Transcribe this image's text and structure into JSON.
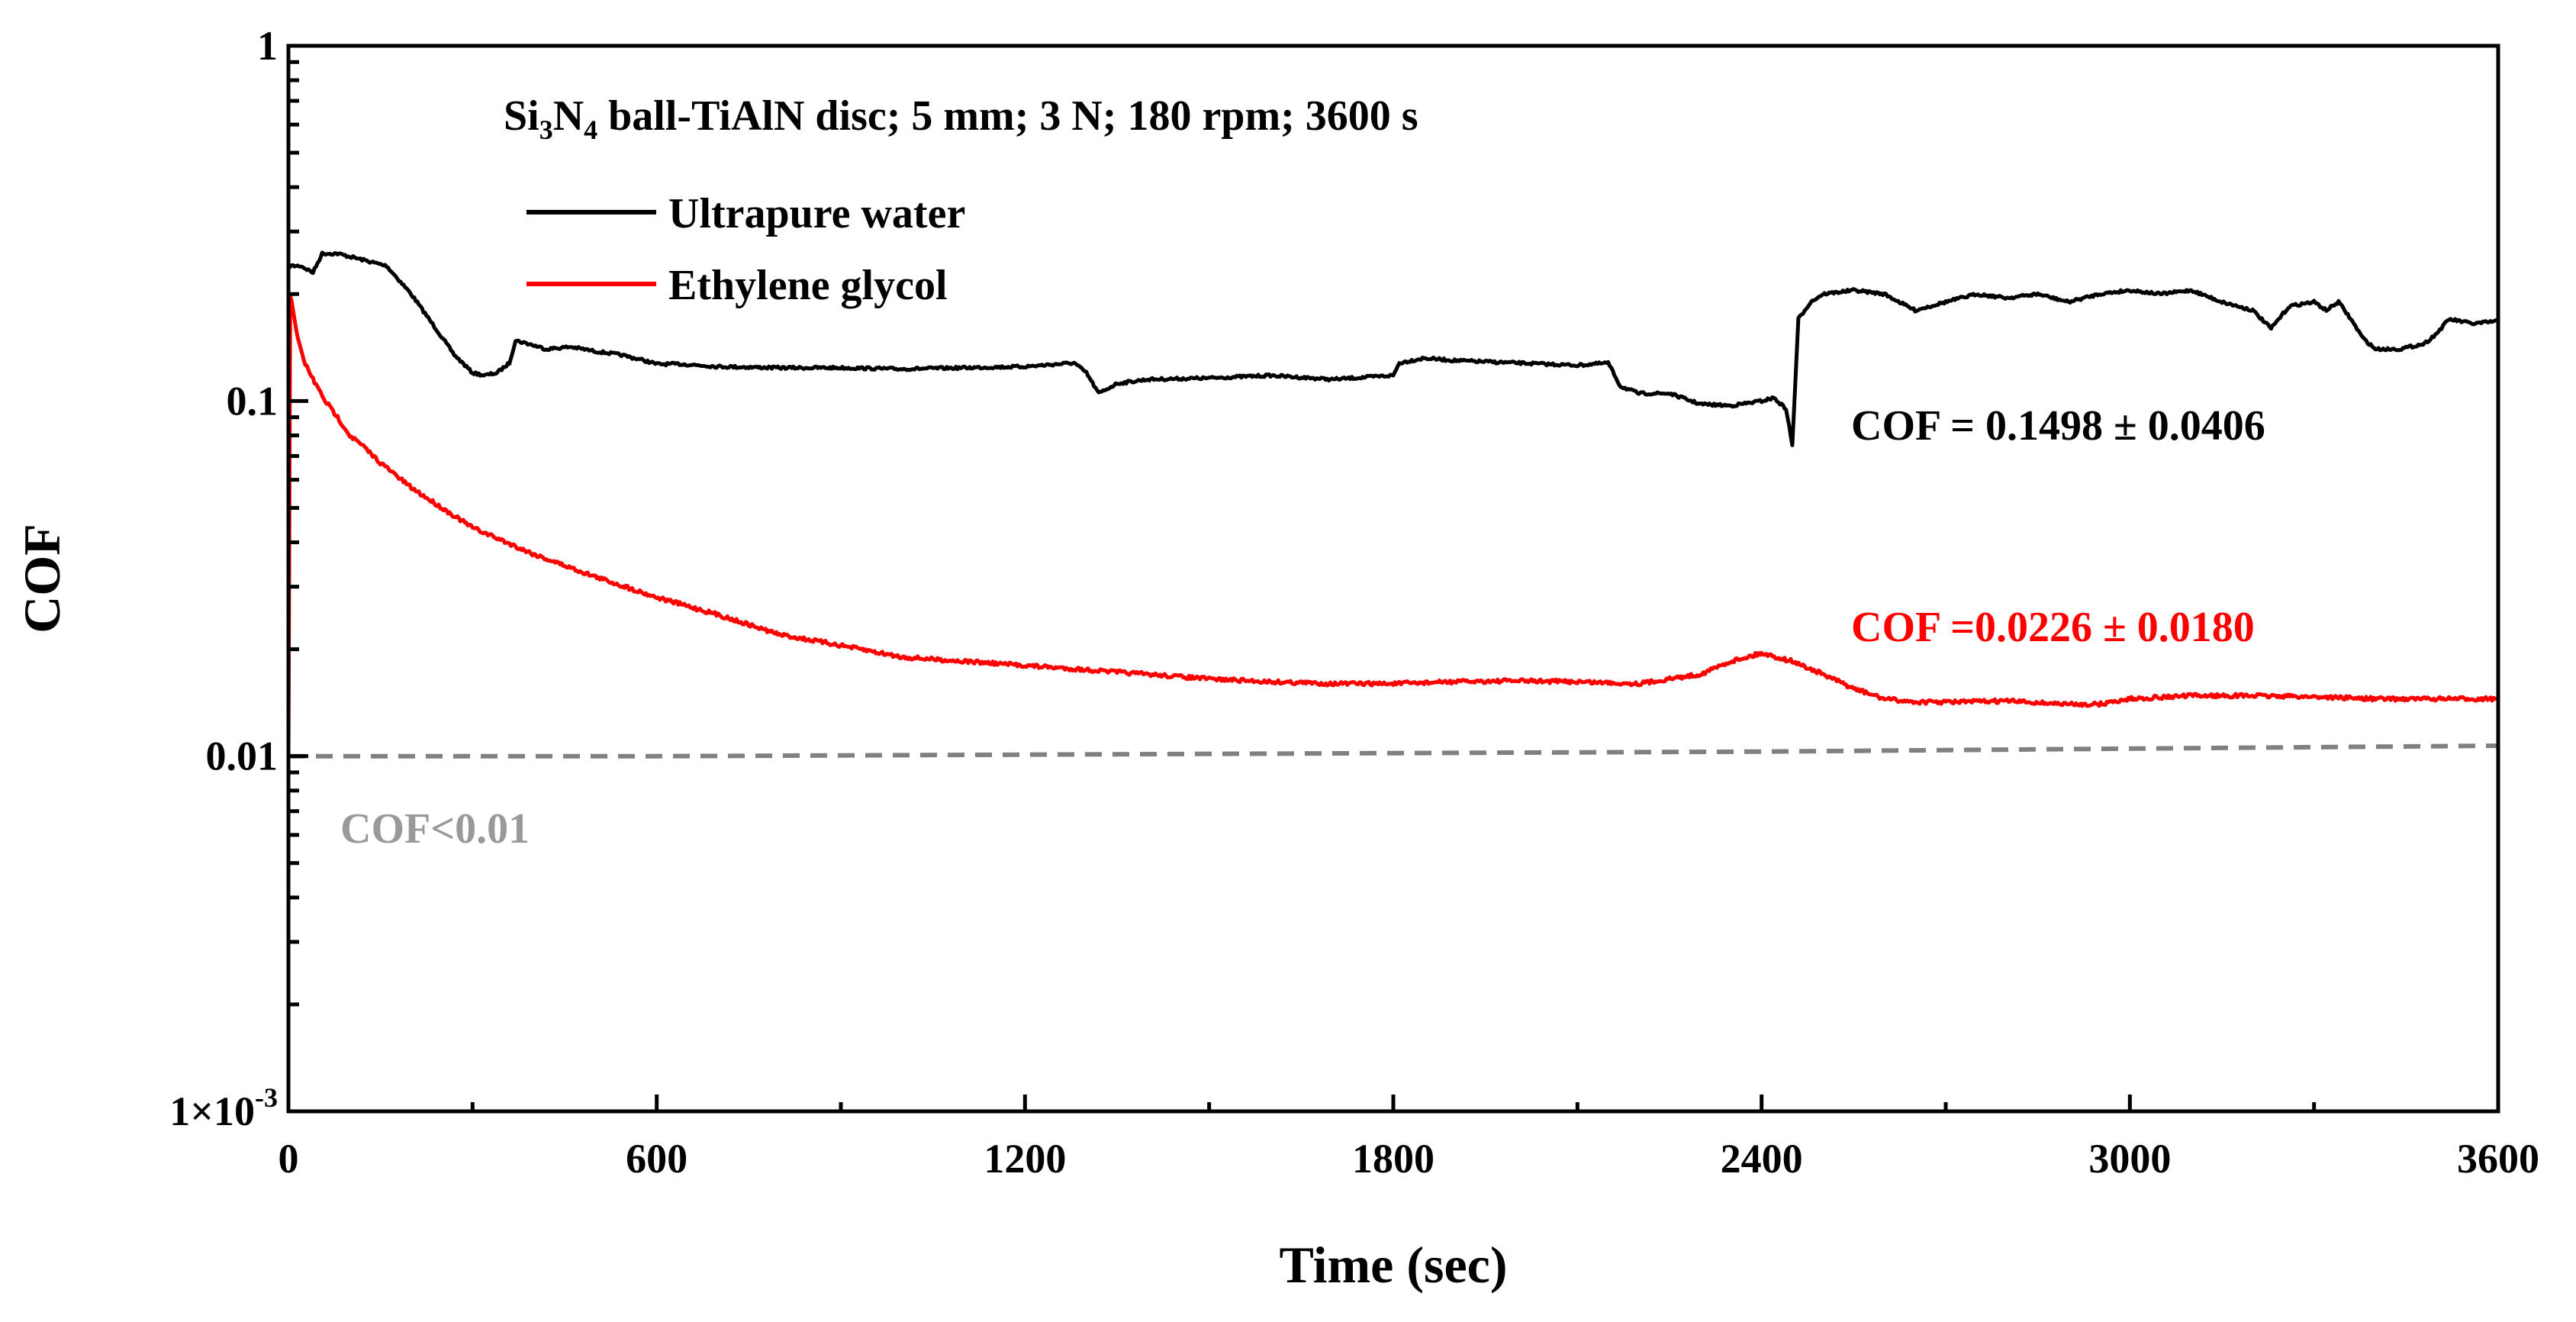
{
  "chart_data": {
    "type": "line",
    "title": "",
    "condition_label": {
      "prefix": "Si",
      "sub1": "3",
      "mid": "N",
      "sub2": "4",
      "rest": " ball-TiAlN disc; 5 mm; 3 N; 180 rpm; 3600 s"
    },
    "xlabel": "Time (sec)",
    "ylabel": "COF",
    "xlim": [
      0,
      3600
    ],
    "ylim": [
      0.001,
      1
    ],
    "y_scale": "log",
    "x_ticks": [
      0,
      600,
      1200,
      1800,
      2400,
      3000,
      3600
    ],
    "x_tick_labels": [
      "0",
      "600",
      "1200",
      "1800",
      "2400",
      "3000",
      "3600"
    ],
    "y_ticks": [
      0.001,
      0.01,
      0.1,
      1
    ],
    "y_tick_labels": [
      {
        "base": "1×10",
        "exp": "-3"
      },
      {
        "base": "0.01",
        "exp": ""
      },
      {
        "base": "0.1",
        "exp": ""
      },
      {
        "base": "1",
        "exp": ""
      }
    ],
    "grid": false,
    "legend_position": "top-left",
    "series": [
      {
        "name": "Ultrapure water",
        "color": "#000000",
        "x": [
          0,
          20,
          40,
          55,
          80,
          120,
          160,
          200,
          240,
          270,
          300,
          320,
          340,
          360,
          370,
          390,
          420,
          460,
          500,
          540,
          580,
          600,
          640,
          700,
          800,
          900,
          1000,
          1100,
          1200,
          1280,
          1300,
          1320,
          1350,
          1400,
          1500,
          1600,
          1700,
          1800,
          1810,
          1850,
          1900,
          2000,
          2100,
          2150,
          2170,
          2200,
          2250,
          2300,
          2350,
          2400,
          2420,
          2440,
          2450,
          2460,
          2470,
          2480,
          2500,
          2550,
          2600,
          2650,
          2700,
          2750,
          2800,
          2850,
          2900,
          2950,
          3000,
          3050,
          3100,
          3150,
          3200,
          3230,
          3260,
          3300,
          3320,
          3340,
          3360,
          3380,
          3400,
          3440,
          3480,
          3500,
          3520,
          3560,
          3600
        ],
        "y": [
          0.24,
          0.24,
          0.23,
          0.26,
          0.26,
          0.25,
          0.24,
          0.2,
          0.16,
          0.135,
          0.12,
          0.118,
          0.12,
          0.128,
          0.148,
          0.145,
          0.14,
          0.142,
          0.138,
          0.135,
          0.13,
          0.127,
          0.127,
          0.125,
          0.124,
          0.124,
          0.123,
          0.124,
          0.125,
          0.128,
          0.12,
          0.105,
          0.112,
          0.115,
          0.116,
          0.118,
          0.115,
          0.118,
          0.128,
          0.132,
          0.13,
          0.128,
          0.126,
          0.128,
          0.11,
          0.105,
          0.105,
          0.098,
          0.097,
          0.1,
          0.102,
          0.095,
          0.075,
          0.17,
          0.18,
          0.19,
          0.2,
          0.205,
          0.2,
          0.18,
          0.19,
          0.2,
          0.195,
          0.2,
          0.19,
          0.2,
          0.205,
          0.2,
          0.205,
          0.19,
          0.18,
          0.16,
          0.185,
          0.19,
          0.18,
          0.19,
          0.17,
          0.15,
          0.14,
          0.14,
          0.145,
          0.155,
          0.17,
          0.165,
          0.168
        ]
      },
      {
        "name": "Ethylene glycol",
        "color": "#ff0000",
        "x": [
          0,
          3,
          8,
          15,
          25,
          40,
          60,
          80,
          100,
          120,
          150,
          200,
          250,
          300,
          400,
          500,
          600,
          700,
          800,
          900,
          1000,
          1100,
          1200,
          1300,
          1400,
          1500,
          1600,
          1700,
          1800,
          1900,
          2000,
          2100,
          2200,
          2250,
          2300,
          2350,
          2400,
          2450,
          2500,
          2550,
          2600,
          2650,
          2700,
          2800,
          2900,
          2950,
          3000,
          3100,
          3200,
          3300,
          3400,
          3500,
          3600
        ],
        "y": [
          0.01,
          0.2,
          0.18,
          0.15,
          0.13,
          0.115,
          0.1,
          0.09,
          0.08,
          0.075,
          0.067,
          0.057,
          0.05,
          0.044,
          0.037,
          0.032,
          0.028,
          0.025,
          0.022,
          0.0205,
          0.019,
          0.0185,
          0.018,
          0.0175,
          0.017,
          0.0165,
          0.0162,
          0.016,
          0.016,
          0.0162,
          0.0163,
          0.0162,
          0.016,
          0.0165,
          0.017,
          0.0185,
          0.0195,
          0.0185,
          0.017,
          0.0155,
          0.0145,
          0.0142,
          0.0142,
          0.0143,
          0.014,
          0.014,
          0.0145,
          0.0148,
          0.0148,
          0.0147,
          0.0145,
          0.0145,
          0.0145
        ]
      },
      {
        "name": "",
        "color": "#808080",
        "style": "dashed",
        "x": [
          0,
          600,
          1200,
          1800,
          2400,
          3000,
          3600
        ],
        "y": [
          0.01,
          0.01,
          0.0101,
          0.0102,
          0.0103,
          0.0105,
          0.0107
        ]
      }
    ],
    "annotations": [
      {
        "text": "COF = 0.1498 ± 0.0406",
        "color": "#000000"
      },
      {
        "text": "COF =0.0226 ± 0.0180",
        "color": "#ff0000"
      },
      {
        "text": "COF<0.01",
        "color": "#999999"
      }
    ]
  }
}
